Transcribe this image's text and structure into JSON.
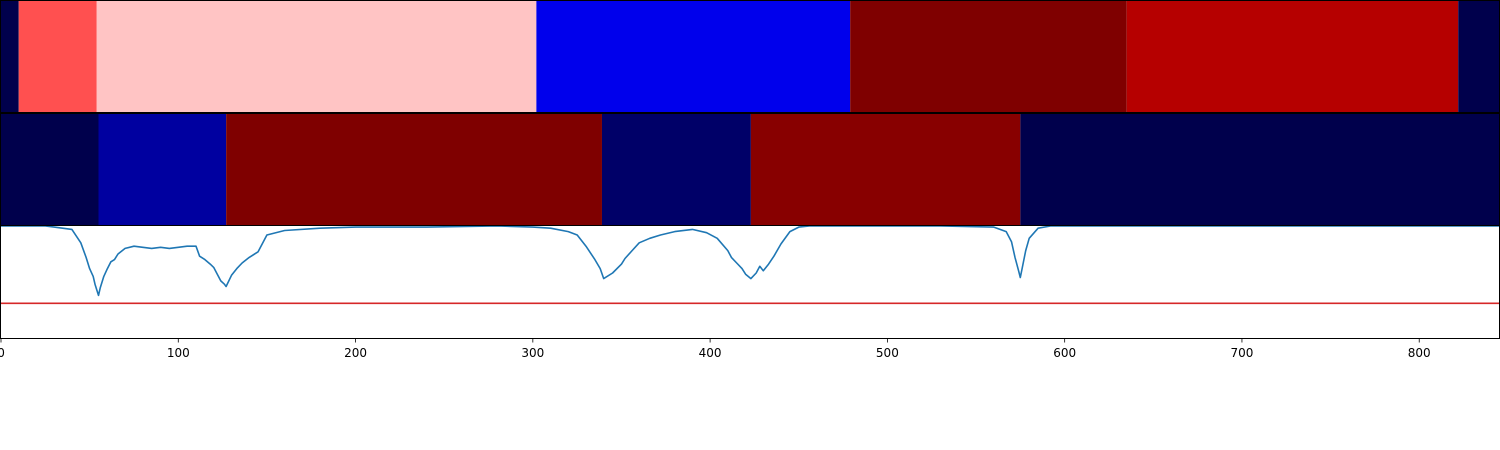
{
  "chart_data": [
    {
      "type": "heatmap",
      "panel": "segments-top",
      "xlim": [
        0,
        845
      ],
      "segments": [
        {
          "start": 0,
          "end": 10,
          "color": "#00004c"
        },
        {
          "start": 10,
          "end": 54,
          "color": "#ff5050"
        },
        {
          "start": 54,
          "end": 302,
          "color": "#ffc4c4"
        },
        {
          "start": 302,
          "end": 479,
          "color": "#0000ec"
        },
        {
          "start": 479,
          "end": 635,
          "color": "#7f0000"
        },
        {
          "start": 635,
          "end": 822,
          "color": "#b60000"
        },
        {
          "start": 822,
          "end": 845,
          "color": "#00004c"
        }
      ]
    },
    {
      "type": "heatmap",
      "panel": "segments-middle",
      "xlim": [
        0,
        845
      ],
      "segments": [
        {
          "start": 0,
          "end": 55,
          "color": "#00004c"
        },
        {
          "start": 55,
          "end": 127,
          "color": "#0000a0"
        },
        {
          "start": 127,
          "end": 339,
          "color": "#7f0000"
        },
        {
          "start": 339,
          "end": 423,
          "color": "#000068"
        },
        {
          "start": 423,
          "end": 575,
          "color": "#880000"
        },
        {
          "start": 575,
          "end": 845,
          "color": "#00004c"
        }
      ]
    },
    {
      "type": "line",
      "panel": "curve-bottom",
      "xlim": [
        0,
        845
      ],
      "ylim": [
        0,
        1
      ],
      "threshold": {
        "y": 0.31,
        "color": "#d62728"
      },
      "series": [
        {
          "color": "#1f77b4",
          "x": [
            0,
            25,
            30,
            40,
            45,
            48,
            50,
            52,
            53,
            55,
            56,
            58,
            60,
            62,
            64,
            66,
            70,
            75,
            80,
            85,
            90,
            95,
            100,
            105,
            110,
            112,
            115,
            118,
            120,
            122,
            124,
            126,
            127,
            130,
            133,
            136,
            140,
            145,
            150,
            160,
            180,
            200,
            240,
            280,
            300,
            310,
            320,
            325,
            330,
            335,
            338,
            340,
            345,
            350,
            352,
            356,
            360,
            366,
            372,
            380,
            390,
            398,
            404,
            410,
            412,
            415,
            418,
            420,
            423,
            426,
            428,
            430,
            433,
            436,
            440,
            445,
            450,
            456,
            465,
            480,
            500,
            530,
            560,
            567,
            570,
            572,
            574,
            575,
            576,
            578,
            580,
            585,
            592,
            600,
            620,
            845
          ],
          "y": [
            1.0,
            1.0,
            0.99,
            0.97,
            0.85,
            0.72,
            0.62,
            0.55,
            0.48,
            0.38,
            0.45,
            0.55,
            0.62,
            0.68,
            0.7,
            0.75,
            0.8,
            0.82,
            0.81,
            0.8,
            0.81,
            0.8,
            0.81,
            0.82,
            0.82,
            0.73,
            0.7,
            0.66,
            0.63,
            0.57,
            0.51,
            0.48,
            0.46,
            0.56,
            0.62,
            0.67,
            0.72,
            0.77,
            0.92,
            0.96,
            0.98,
            0.99,
            0.99,
            1.0,
            0.99,
            0.98,
            0.95,
            0.92,
            0.82,
            0.7,
            0.62,
            0.53,
            0.58,
            0.66,
            0.71,
            0.78,
            0.85,
            0.89,
            0.92,
            0.95,
            0.97,
            0.94,
            0.89,
            0.78,
            0.72,
            0.67,
            0.62,
            0.57,
            0.53,
            0.58,
            0.64,
            0.6,
            0.66,
            0.73,
            0.84,
            0.95,
            0.99,
            1.0,
            1.0,
            1.0,
            1.0,
            1.0,
            0.99,
            0.95,
            0.86,
            0.72,
            0.6,
            0.54,
            0.62,
            0.78,
            0.89,
            0.98,
            1.0,
            1.0,
            1.0,
            1.0
          ]
        }
      ],
      "xticks": [
        0,
        100,
        200,
        300,
        400,
        500,
        600,
        700,
        800
      ],
      "xtick_labels": [
        "0",
        "100",
        "200",
        "300",
        "400",
        "500",
        "600",
        "700",
        "800"
      ]
    }
  ]
}
